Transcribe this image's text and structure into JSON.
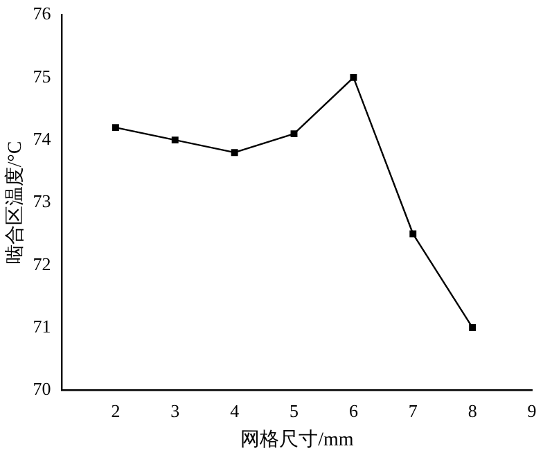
{
  "chart_data": {
    "type": "line",
    "xlabel": "网格尺寸/mm",
    "ylabel": "啮合区温度/°C",
    "x": [
      2,
      3,
      4,
      5,
      6,
      7,
      8
    ],
    "series": [
      {
        "color": "#000000",
        "values": [
          74.2,
          74.0,
          73.8,
          74.1,
          75.0,
          72.5,
          71.0
        ]
      }
    ],
    "xlim": [
      1.1,
      9
    ],
    "xticks": [
      2,
      3,
      4,
      5,
      6,
      7,
      8,
      9
    ],
    "ylim": [
      70,
      76
    ],
    "yticks": [
      70,
      71,
      72,
      73,
      74,
      75,
      76
    ],
    "grid": false,
    "legend": false,
    "marker": "square",
    "line_style": "solid"
  }
}
